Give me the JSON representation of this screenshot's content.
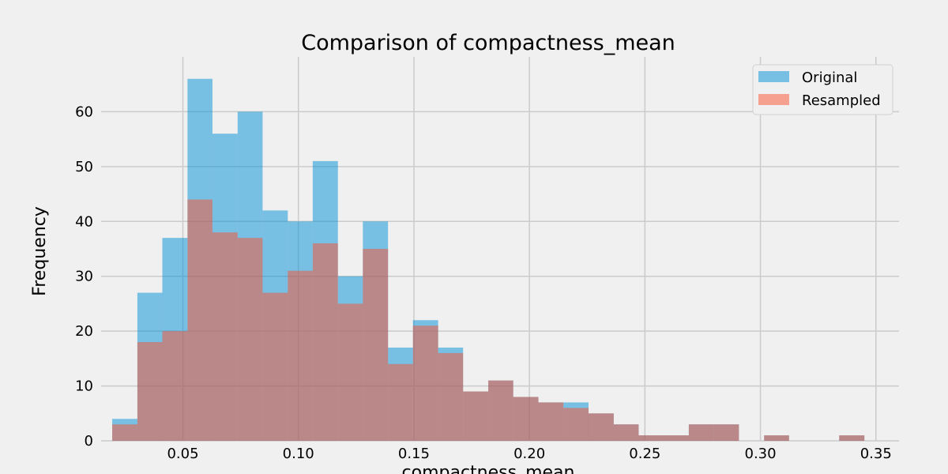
{
  "chart_data": {
    "type": "bar",
    "title": "Comparison of compactness_mean",
    "xlabel": "compactness_mean",
    "ylabel": "Frequency",
    "xlim": [
      0.0146,
      0.36
    ],
    "ylim": [
      0,
      70
    ],
    "xticks": [
      0.05,
      0.1,
      0.15,
      0.2,
      0.25,
      0.3,
      0.35
    ],
    "xtick_labels": [
      "0.05",
      "0.10",
      "0.15",
      "0.20",
      "0.25",
      "0.30",
      "0.35"
    ],
    "yticks": [
      0,
      10,
      20,
      30,
      40,
      50,
      60
    ],
    "ytick_labels": [
      "0",
      "10",
      "20",
      "30",
      "40",
      "50",
      "60"
    ],
    "grid": true,
    "legend_position": "top-right",
    "bin_edges": [
      0.0194,
      0.0303,
      0.0411,
      0.052,
      0.0628,
      0.0737,
      0.0845,
      0.0954,
      0.1062,
      0.1171,
      0.1279,
      0.1388,
      0.1496,
      0.1605,
      0.1713,
      0.1822,
      0.193,
      0.2039,
      0.2147,
      0.2256,
      0.2365,
      0.2473,
      0.2582,
      0.269,
      0.2799,
      0.2907,
      0.3016,
      0.3124,
      0.3233,
      0.3341,
      0.345
    ],
    "series": [
      {
        "name": "Original",
        "color": "#008fd5",
        "opacity": 0.5,
        "values": [
          4,
          27,
          37,
          66,
          56,
          60,
          42,
          40,
          51,
          30,
          40,
          17,
          22,
          17,
          9,
          11,
          8,
          7,
          7,
          5,
          3,
          1,
          1,
          3,
          3,
          0,
          1,
          0,
          0,
          1
        ]
      },
      {
        "name": "Resampled",
        "color": "#fc4f30",
        "opacity": 0.5,
        "values": [
          3,
          18,
          20,
          44,
          38,
          37,
          27,
          31,
          36,
          25,
          35,
          14,
          21,
          16,
          9,
          11,
          8,
          7,
          6,
          5,
          3,
          1,
          1,
          3,
          3,
          0,
          1,
          0,
          0,
          1
        ]
      }
    ]
  }
}
